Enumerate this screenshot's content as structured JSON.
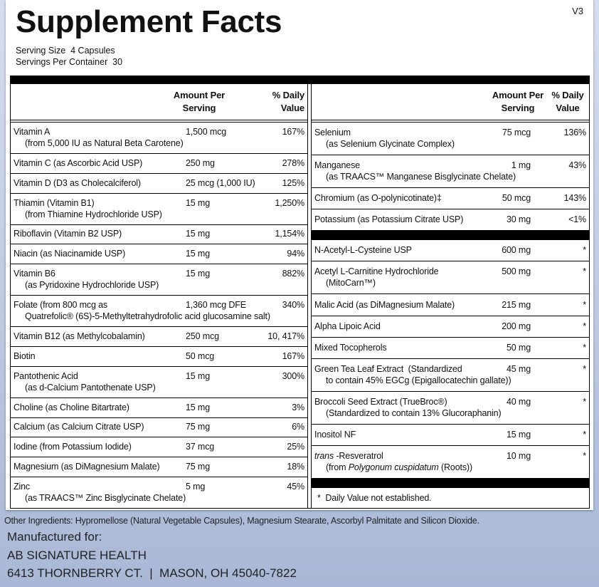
{
  "version": "V3",
  "header": {
    "title": "Supplement Facts",
    "serving_size": "Serving Size  4 Capsules",
    "servings_per_container": "Servings Per Container  30"
  },
  "columns": [
    {
      "amount_header": [
        "Amount Per",
        "Serving"
      ],
      "dv_header": [
        "% Daily",
        "Value"
      ],
      "sections": [
        [
          {
            "name": "Vitamin A",
            "amount": "1,500 mcg",
            "dv": "167%",
            "sub": "(from 5,000 IU as Natural Beta Carotene)"
          },
          {
            "name": "Vitamin C (as Ascorbic Acid USP)",
            "amount": "250 mg",
            "dv": "278%"
          },
          {
            "name": "Vitamin D (D3 as Cholecalciferol)",
            "amount": "25 mcg (1,000 IU)",
            "dv": "125%"
          },
          {
            "name": "Thiamin (Vitamin B1)",
            "amount": "15 mg",
            "dv": "1,250%",
            "sub": "(from Thiamine Hydrochloride USP)"
          },
          {
            "name": "Riboflavin (Vitamin B2 USP)",
            "amount": "15 mg",
            "dv": "1,154%"
          },
          {
            "name": "Niacin (as Niacinamide USP)",
            "amount": "15 mg",
            "dv": "94%"
          },
          {
            "name": "Vitamin B6",
            "amount": "15 mg",
            "dv": "882%",
            "sub": "(as Pyridoxine Hydrochloride USP)"
          },
          {
            "name": "Folate (from 800 mcg as",
            "amount": "1,360 mcg DFE",
            "dv": "340%",
            "sub": "Quatrefolic® (6S)-5-Methyltetrahydrofolic acid glucosamine salt)"
          },
          {
            "name": "Vitamin B12 (as Methylcobalamin)",
            "amount": "250 mcg",
            "dv": "10, 417%"
          },
          {
            "name": "Biotin",
            "amount": "50 mcg",
            "dv": "167%"
          },
          {
            "name": "Pantothenic Acid",
            "amount": "15 mg",
            "dv": "300%",
            "sub": "(as d-Calcium Pantothenate USP)"
          },
          {
            "name": "Choline (as Choline Bitartrate)",
            "amount": "15 mg",
            "dv": "3%"
          },
          {
            "name": "Calcium (as Calcium Citrate USP)",
            "amount": "75 mg",
            "dv": "6%"
          },
          {
            "name": "Iodine (from Potassium Iodide)",
            "amount": "37 mcg",
            "dv": "25%"
          },
          {
            "name": "Magnesium (as DiMagnesium Malate)",
            "amount": "75 mg",
            "dv": "18%"
          },
          {
            "name": "Zinc",
            "amount": "5 mg",
            "dv": "45%",
            "sub": "(as TRAACS™ Zinc Bisglycinate Chelate)"
          }
        ]
      ]
    },
    {
      "amount_header": [
        "Amount Per",
        "Serving"
      ],
      "dv_header": [
        "% Daily",
        "Value"
      ],
      "sections": [
        [
          {
            "name": "Selenium",
            "amount": "75 mcg",
            "dv": "136%",
            "sub": "(as Selenium Glycinate Complex)"
          },
          {
            "name": "Manganese",
            "amount": "1 mg",
            "dv": "43%",
            "sub": "(as TRAACS™ Manganese Bisglycinate Chelate)"
          },
          {
            "name": "Chromium (as O-polynicotinate)‡",
            "amount": "50 mcg",
            "dv": "143%"
          },
          {
            "name": "Potassium (as Potassium Citrate USP)",
            "amount": "30 mg",
            "dv": "<1%"
          }
        ],
        [
          {
            "name": "N-Acetyl-L-Cysteine USP",
            "amount": "600 mg",
            "dv": "*"
          },
          {
            "name": "Acetyl L-Carnitine Hydrochloride",
            "amount": "500 mg",
            "dv": "*",
            "sub": "(MitoCarn™)"
          },
          {
            "name": "Malic Acid (as DiMagnesium Malate)",
            "amount": "215 mg",
            "dv": "*"
          },
          {
            "name": "Alpha Lipoic Acid",
            "amount": "200 mg",
            "dv": "*"
          },
          {
            "name": "Mixed Tocopherols",
            "amount": "50 mg",
            "dv": "*"
          },
          {
            "name": "Green Tea Leaf Extract  (Standardized",
            "amount": "45 mg",
            "dv": "*",
            "sub": "to contain 45% EGCg (Epigallocatechin gallate))"
          },
          {
            "name": "Broccoli Seed Extract (TrueBroc®)",
            "amount": "40 mg",
            "dv": "*",
            "sub": "(Standardized to contain 13% Glucoraphanin)"
          },
          {
            "name": "Inositol NF",
            "amount": "15 mg",
            "dv": "*"
          },
          {
            "name": [
              "trans",
              "-Resveratrol"
            ],
            "name_italic": [
              0
            ],
            "amount": "10 mg",
            "dv": "*",
            "sub": [
              "(from",
              "Polygonum cuspidatum",
              "(Roots))"
            ],
            "sub_italic": [
              1
            ]
          }
        ]
      ],
      "footnote": "*  Daily Value not established."
    }
  ],
  "footer": {
    "other_ingredients": "Other Ingredients: Hypromellose (Natural Vegetable Capsules), Magnesium Stearate, Ascorbyl Palmitate and Silicon Dioxide.",
    "manufacturer": [
      "Manufactured for:",
      "AB SIGNATURE HEALTH",
      "6413 THORNBERRY CT.  |  MASON, OH 45040-7822"
    ]
  }
}
